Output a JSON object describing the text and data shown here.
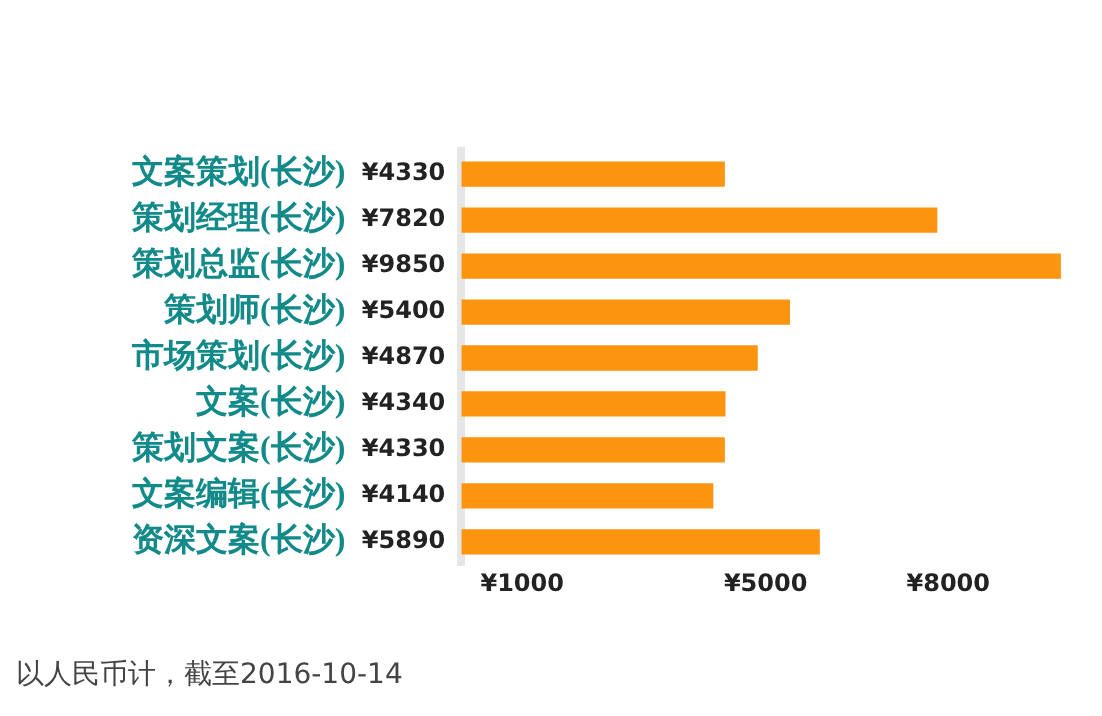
{
  "chart_data": {
    "type": "bar",
    "orientation": "horizontal",
    "categories": [
      "文案策划(长沙)",
      "策划经理(长沙)",
      "策划总监(长沙)",
      "策划师(长沙)",
      "市场策划(长沙)",
      "文案(长沙)",
      "策划文案(长沙)",
      "文案编辑(长沙)",
      "资深文案(长沙)"
    ],
    "values": [
      4330,
      7820,
      9850,
      5400,
      4870,
      4340,
      4330,
      4140,
      5890
    ],
    "value_labels": [
      "¥4330",
      "¥7820",
      "¥9850",
      "¥5400",
      "¥4870",
      "¥4340",
      "¥4330",
      "¥4140",
      "¥5890"
    ],
    "color": "#fb9510",
    "xlim": [
      0,
      10000
    ],
    "xticks": [
      {
        "value": 1000,
        "label": "¥1000"
      },
      {
        "value": 5000,
        "label": "¥5000"
      },
      {
        "value": 8000,
        "label": "¥8000"
      }
    ],
    "grid": false,
    "legend": false,
    "annotations": [
      "以人民币计，截至2016-10-14"
    ]
  }
}
